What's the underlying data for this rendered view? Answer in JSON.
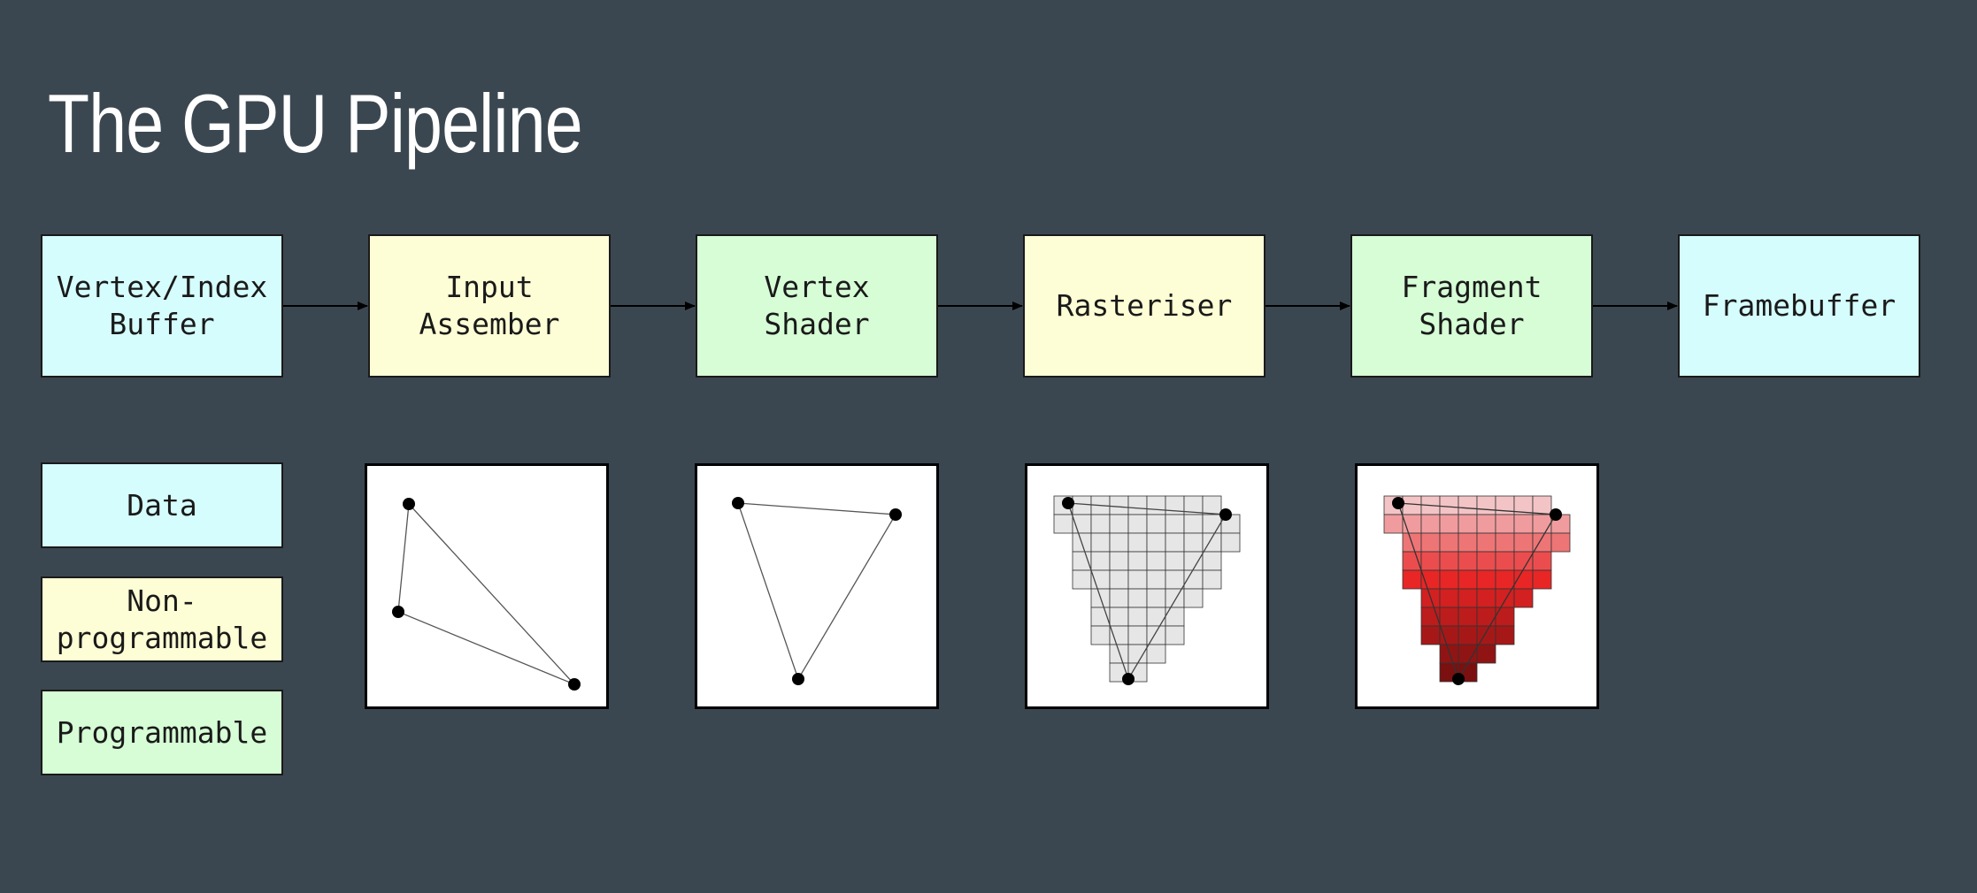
{
  "page": {
    "title": "The GPU Pipeline"
  },
  "stages": [
    {
      "label": "Vertex/Index\nBuffer",
      "kind": "data"
    },
    {
      "label": "Input\nAssember",
      "kind": "non-programmable"
    },
    {
      "label": "Vertex\nShader",
      "kind": "programmable"
    },
    {
      "label": "Rasteriser",
      "kind": "non-programmable"
    },
    {
      "label": "Fragment\nShader",
      "kind": "programmable"
    },
    {
      "label": "Framebuffer",
      "kind": "data"
    }
  ],
  "legend": {
    "data": "Data",
    "non_programmable": "Non-\nprogrammable",
    "programmable": "Programmable"
  },
  "colors": {
    "background": "#3b4750",
    "data": "#d6fdfd",
    "non_programmable": "#fefed6",
    "programmable": "#d6fdd6",
    "raster_cell": "#e6e6e6",
    "fragment_light": "#f3c4c6",
    "fragment_dark": "#7a1010"
  },
  "panels": [
    {
      "stage": "Input Assember",
      "content": "triangle-vertices"
    },
    {
      "stage": "Vertex Shader",
      "content": "transformed-triangle"
    },
    {
      "stage": "Rasteriser",
      "content": "rasterised-cells"
    },
    {
      "stage": "Fragment Shader",
      "content": "shaded-fragments"
    }
  ]
}
